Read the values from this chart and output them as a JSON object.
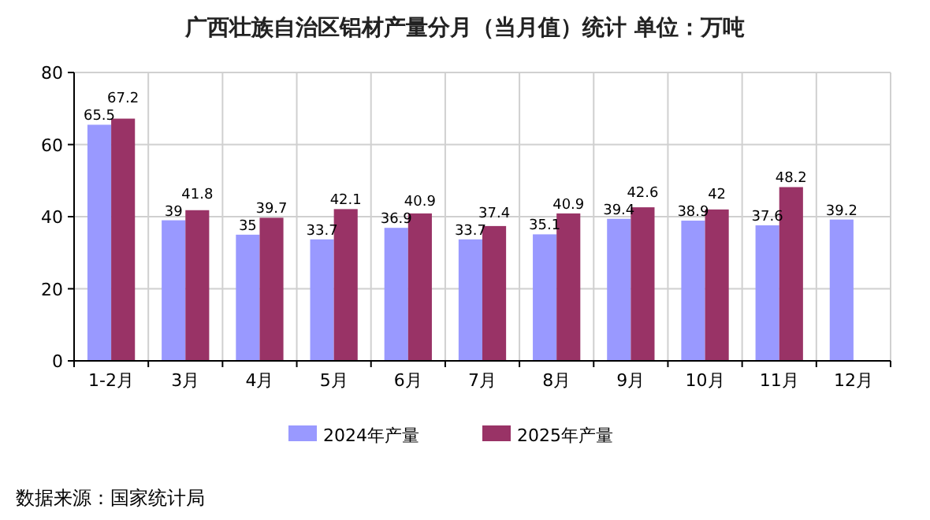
{
  "chart_data": {
    "type": "bar",
    "title": "广西壮族自治区铝材产量分月（当月值）统计  单位：万吨",
    "categories": [
      "1-2月",
      "3月",
      "4月",
      "5月",
      "6月",
      "7月",
      "8月",
      "9月",
      "10月",
      "11月",
      "12月"
    ],
    "series": [
      {
        "name": "2024年产量",
        "color": "#9999ff",
        "values": [
          65.5,
          39,
          35,
          33.7,
          36.9,
          33.7,
          35.1,
          39.4,
          38.9,
          37.6,
          39.2
        ]
      },
      {
        "name": "2025年产量",
        "color": "#993366",
        "values": [
          67.2,
          41.8,
          39.7,
          42.1,
          40.9,
          37.4,
          40.9,
          42.6,
          42,
          48.2,
          null
        ]
      }
    ],
    "ylim": [
      0,
      80
    ],
    "yticks": [
      0,
      20,
      40,
      60,
      80
    ],
    "grid": true,
    "legend": "bottom",
    "data_labels": true,
    "annotations": [
      "数据来源：国家统计局"
    ]
  }
}
